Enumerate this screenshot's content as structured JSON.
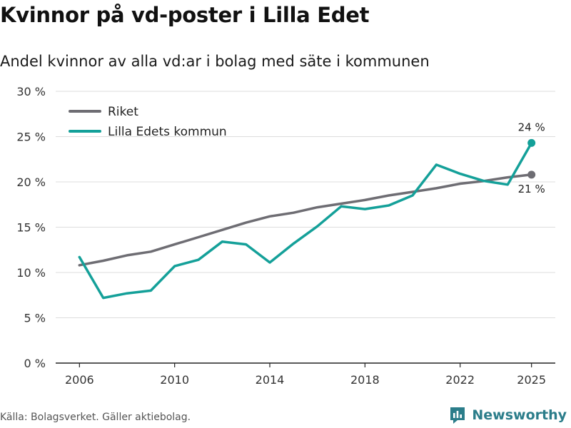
{
  "title": "Kvinnor på vd-poster i Lilla Edet",
  "subtitle": "Andel kvinnor av alla vd:ar i bolag med säte i kommunen",
  "footer": "Källa: Bolagsverket. Gäller aktiebolag.",
  "brand": "Newsworthy",
  "colors": {
    "riket": "#6e6d73",
    "kommun": "#14a099",
    "grid": "#dddddd",
    "axis": "#222222",
    "brand": "#2b7d8a"
  },
  "chart_data": {
    "type": "line",
    "x": [
      2006,
      2007,
      2008,
      2009,
      2010,
      2011,
      2012,
      2013,
      2014,
      2015,
      2016,
      2017,
      2018,
      2019,
      2020,
      2021,
      2022,
      2023,
      2024,
      2025
    ],
    "series": [
      {
        "name": "Riket",
        "color_key": "riket",
        "values": [
          10.8,
          11.3,
          11.9,
          12.3,
          13.1,
          13.9,
          14.7,
          15.5,
          16.2,
          16.6,
          17.2,
          17.6,
          18.0,
          18.5,
          18.9,
          19.3,
          19.8,
          20.1,
          20.5,
          20.8
        ],
        "end_label": "21 %"
      },
      {
        "name": "Lilla Edets kommun",
        "color_key": "kommun",
        "values": [
          11.7,
          7.2,
          7.7,
          8.0,
          10.7,
          11.4,
          13.4,
          13.1,
          11.1,
          13.2,
          15.1,
          17.3,
          17.0,
          17.4,
          18.5,
          21.9,
          20.9,
          20.1,
          19.7,
          24.3
        ],
        "end_label": "24 %"
      }
    ],
    "xticks": [
      2006,
      2010,
      2014,
      2018,
      2022,
      2025
    ],
    "xtick_labels": [
      "2006",
      "2010",
      "2014",
      "2018",
      "2022",
      "2025"
    ],
    "yticks": [
      0,
      5,
      10,
      15,
      20,
      25,
      30
    ],
    "ytick_labels": [
      "0 %",
      "5 %",
      "10 %",
      "15 %",
      "20 %",
      "25 %",
      "30 %"
    ],
    "xlim": [
      2005,
      2026
    ],
    "ylim": [
      0,
      30
    ],
    "legend": [
      "Riket",
      "Lilla Edets kommun"
    ],
    "legend_position": "top-left",
    "grid": true,
    "xlabel": "",
    "ylabel": ""
  }
}
